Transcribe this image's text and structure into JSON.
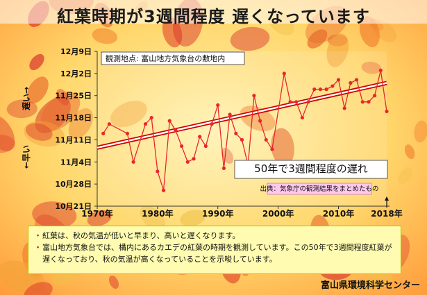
{
  "title": "紅葉時期が3週間程度 遅くなっています",
  "location_label": "観測地点: 富山地方気象台の敷地内",
  "callout": "50年で3週間程度の遅れ",
  "source": "出典：気象庁の観測結果をまとめたもの",
  "y_label_late": "遅い→",
  "y_label_early": "←早い",
  "end_year_label": "2018年",
  "notes": [
    "紅葉は、秋の気温が低いと早まり、高いと遅くなります。",
    "富山地方気象台では、構内にあるカエデの紅葉の時期を観測しています。この50年で3週間程度紅葉が遅くなっており、秋の気温が高くなっていることを示唆しています。"
  ],
  "credit": "富山県環境科学センター",
  "chart_data": {
    "type": "line",
    "title": "",
    "xlabel": "",
    "ylabel": "",
    "x_ticks": [
      "1970年",
      "1980年",
      "1990年",
      "2000年",
      "2010年"
    ],
    "x_tick_values": [
      1970,
      1980,
      1990,
      2000,
      2010
    ],
    "xlim": [
      1970,
      2018
    ],
    "y_ticks": [
      "12月9日",
      "12月2日",
      "11月25日",
      "11月18日",
      "11月11日",
      "11月4日",
      "10月28日",
      "10月21日"
    ],
    "y_unit": "day of year (Oct 21 = day 294, Dec 9 = day 343)",
    "ylim_dates": [
      "10月21日",
      "12月9日"
    ],
    "ylim": [
      294,
      343
    ],
    "series": [
      {
        "color": "#e8262b",
        "x": [
          1971,
          1972,
          1975,
          1976,
          1978,
          1979,
          1980,
          1981,
          1982,
          1983,
          1984,
          1985,
          1986,
          1987,
          1988,
          1989,
          1990,
          1991,
          1992,
          1993,
          1994,
          1995,
          1996,
          1997,
          1998,
          1999,
          2001,
          2002,
          2003,
          2004,
          2005,
          2006,
          2007,
          2008,
          2009,
          2010,
          2011,
          2012,
          2013,
          2014,
          2015,
          2016,
          2017,
          2018
        ],
        "values": [
          317,
          320,
          317,
          308,
          320,
          322,
          305,
          299,
          321,
          318,
          313,
          308,
          309,
          316,
          313,
          320,
          326,
          306,
          323,
          317,
          315,
          307,
          329,
          321,
          315,
          312,
          336,
          327,
          327,
          322,
          327,
          331,
          331,
          331,
          332,
          334,
          325,
          333,
          334,
          327,
          327,
          329,
          337,
          324
        ]
      },
      {
        "name": "trend",
        "color": "#cc0000",
        "x": [
          1970,
          2018
        ],
        "values": [
          312.5,
          333.0
        ]
      }
    ],
    "grid": false,
    "legend": "none"
  }
}
